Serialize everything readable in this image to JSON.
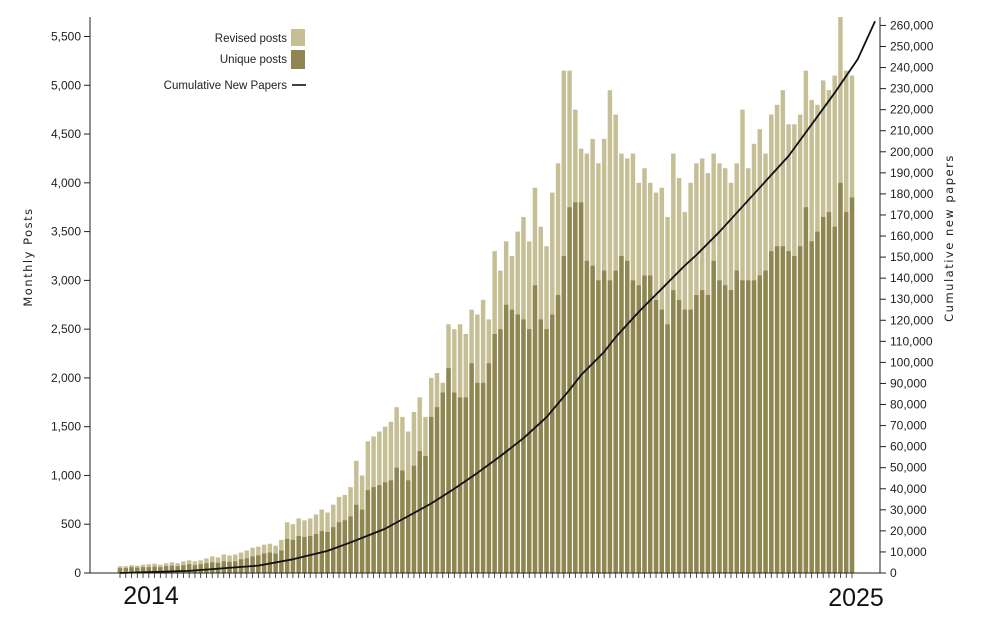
{
  "chart_data": {
    "type": "bar",
    "start_month": "2014-01",
    "end_month": "2024-12",
    "x_labels": [
      "2014",
      "2025"
    ],
    "ylabel": "Monthly Posts",
    "y2label": "Cumulative new papers",
    "ylim": [
      0,
      5700
    ],
    "y2lim": [
      0,
      264000
    ],
    "yticks": [
      0,
      500,
      1000,
      1500,
      2000,
      2500,
      3000,
      3500,
      4000,
      4500,
      5000,
      5500
    ],
    "y2ticks": [
      0,
      10000,
      20000,
      30000,
      40000,
      50000,
      60000,
      70000,
      80000,
      90000,
      100000,
      110000,
      120000,
      130000,
      140000,
      150000,
      160000,
      170000,
      180000,
      190000,
      200000,
      210000,
      220000,
      230000,
      240000,
      250000,
      260000
    ],
    "legend": {
      "position": "top-left",
      "entries": [
        "Revised posts",
        "Unique posts",
        "Cumulative New Papers"
      ]
    },
    "colors": {
      "revised": "#c6bf95",
      "unique": "#8f8652",
      "line": "#111111"
    },
    "series": [
      {
        "name": "Revised posts",
        "type": "bar",
        "axis": "left",
        "values": [
          70,
          70,
          80,
          75,
          85,
          90,
          95,
          85,
          100,
          110,
          100,
          120,
          130,
          120,
          130,
          150,
          170,
          160,
          190,
          180,
          190,
          210,
          230,
          260,
          270,
          290,
          300,
          280,
          340,
          520,
          500,
          560,
          540,
          560,
          600,
          650,
          620,
          700,
          780,
          800,
          880,
          1150,
          1000,
          1350,
          1400,
          1450,
          1500,
          1550,
          1700,
          1600,
          1450,
          1650,
          1800,
          1600,
          2000,
          2050,
          1950,
          2550,
          2500,
          2550,
          2450,
          2700,
          2650,
          2800,
          2600,
          3300,
          3100,
          3400,
          3250,
          3500,
          3650,
          3400,
          3950,
          3550,
          3350,
          3900,
          4200,
          5150,
          5150,
          4750,
          4350,
          4300,
          4450,
          4200,
          4450,
          4950,
          4700,
          4300,
          4250,
          4300,
          4000,
          4150,
          4000,
          3900,
          3950,
          3650,
          4300,
          4050,
          3700,
          4000,
          4200,
          4250,
          4100,
          4300,
          4200,
          4150,
          4000,
          4200,
          4750,
          4150,
          4400,
          4550,
          4300,
          4700,
          4800,
          4950,
          4600,
          4600,
          4700,
          5150,
          4850,
          4800,
          5050,
          4950,
          5100,
          5700,
          5150,
          5100
        ]
      },
      {
        "name": "Unique posts",
        "type": "bar",
        "axis": "left",
        "values": [
          50,
          50,
          60,
          55,
          60,
          60,
          65,
          60,
          70,
          75,
          70,
          80,
          90,
          80,
          90,
          100,
          110,
          105,
          120,
          115,
          120,
          140,
          150,
          170,
          180,
          200,
          210,
          200,
          230,
          350,
          340,
          380,
          370,
          380,
          400,
          430,
          420,
          470,
          520,
          540,
          580,
          700,
          650,
          850,
          880,
          900,
          930,
          950,
          1080,
          1050,
          950,
          1100,
          1250,
          1200,
          1600,
          1700,
          1850,
          2100,
          1850,
          1800,
          1800,
          2150,
          1950,
          1950,
          2150,
          2450,
          2500,
          2750,
          2700,
          2650,
          2600,
          2500,
          2950,
          2600,
          2500,
          2650,
          2850,
          3250,
          3750,
          3800,
          3800,
          3200,
          3150,
          3000,
          3100,
          3000,
          3100,
          3250,
          3200,
          3000,
          2950,
          3050,
          3050,
          2800,
          2700,
          2550,
          2900,
          2800,
          2700,
          2700,
          2850,
          2900,
          2850,
          3200,
          3000,
          2950,
          2900,
          3100,
          3000,
          3000,
          3000,
          3050,
          3100,
          3300,
          3350,
          3350,
          3300,
          3250,
          3350,
          3750,
          3400,
          3500,
          3650,
          3700,
          3550,
          4000,
          3700,
          3850
        ]
      },
      {
        "name": "Cumulative New Papers",
        "type": "line",
        "axis": "right",
        "points": [
          [
            0,
            0
          ],
          [
            12,
            1000
          ],
          [
            24,
            3500
          ],
          [
            30,
            6500
          ],
          [
            36,
            10500
          ],
          [
            40,
            14500
          ],
          [
            46,
            21000
          ],
          [
            50,
            27000
          ],
          [
            54,
            33000
          ],
          [
            58,
            40000
          ],
          [
            62,
            47500
          ],
          [
            66,
            55500
          ],
          [
            70,
            64000
          ],
          [
            74,
            74000
          ],
          [
            78,
            87000
          ],
          [
            80,
            94000
          ],
          [
            84,
            105000
          ],
          [
            86,
            112000
          ],
          [
            90,
            124000
          ],
          [
            94,
            135000
          ],
          [
            98,
            146000
          ],
          [
            100,
            151000
          ],
          [
            104,
            162000
          ],
          [
            108,
            174000
          ],
          [
            112,
            186000
          ],
          [
            116,
            198000
          ],
          [
            120,
            213000
          ],
          [
            124,
            228000
          ],
          [
            128,
            244000
          ],
          [
            131,
            262000
          ]
        ]
      }
    ]
  }
}
